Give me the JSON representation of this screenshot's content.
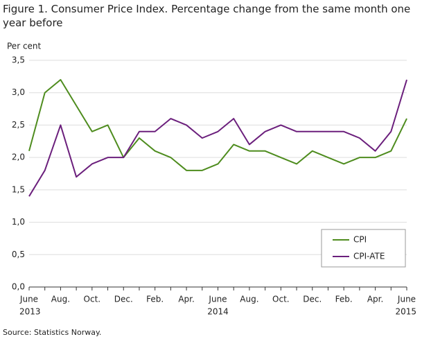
{
  "chart_data": {
    "type": "line",
    "title": "Figure 1. Consumer Price Index. Percentage change from the same month one year before",
    "y_axis_label": "Per cent",
    "source": "Source: Statistics Norway.",
    "categories": [
      "June",
      null,
      "Aug.",
      null,
      "Oct.",
      null,
      "Dec.",
      null,
      "Feb.",
      null,
      "Apr.",
      null,
      "June",
      null,
      "Aug.",
      null,
      "Oct.",
      null,
      "Dec.",
      null,
      "Feb.",
      null,
      "Apr.",
      null,
      "June"
    ],
    "category_years": [
      "2013",
      null,
      null,
      null,
      null,
      null,
      null,
      null,
      null,
      null,
      null,
      null,
      "2014",
      null,
      null,
      null,
      null,
      null,
      null,
      null,
      null,
      null,
      null,
      null,
      "2015"
    ],
    "series": [
      {
        "name": "CPI",
        "color": "#4e8c1e",
        "values": [
          2.1,
          3.0,
          3.2,
          2.8,
          2.4,
          2.5,
          2.0,
          2.3,
          2.1,
          2.0,
          1.8,
          1.8,
          1.9,
          2.2,
          2.1,
          2.1,
          2.0,
          1.9,
          2.1,
          2.0,
          1.9,
          2.0,
          2.0,
          2.1,
          2.6
        ]
      },
      {
        "name": "CPI-ATE",
        "color": "#6b1f7c",
        "values": [
          1.4,
          1.8,
          2.5,
          1.7,
          1.9,
          2.0,
          2.0,
          2.4,
          2.4,
          2.6,
          2.5,
          2.3,
          2.4,
          2.6,
          2.2,
          2.4,
          2.5,
          2.4,
          2.4,
          2.4,
          2.4,
          2.3,
          2.1,
          2.4,
          3.2
        ]
      }
    ],
    "ylim": [
      0,
      3.5
    ],
    "yticks": [
      {
        "value": 0,
        "label": "0,0"
      },
      {
        "value": 0.5,
        "label": "0,5"
      },
      {
        "value": 1,
        "label": "1,0"
      },
      {
        "value": 1.5,
        "label": "1,5"
      },
      {
        "value": 2,
        "label": "2,0"
      },
      {
        "value": 2.5,
        "label": "2,5"
      },
      {
        "value": 3,
        "label": "3,0"
      },
      {
        "value": 3.5,
        "label": "3,5"
      }
    ],
    "grid": true,
    "legend": "lower-right"
  }
}
